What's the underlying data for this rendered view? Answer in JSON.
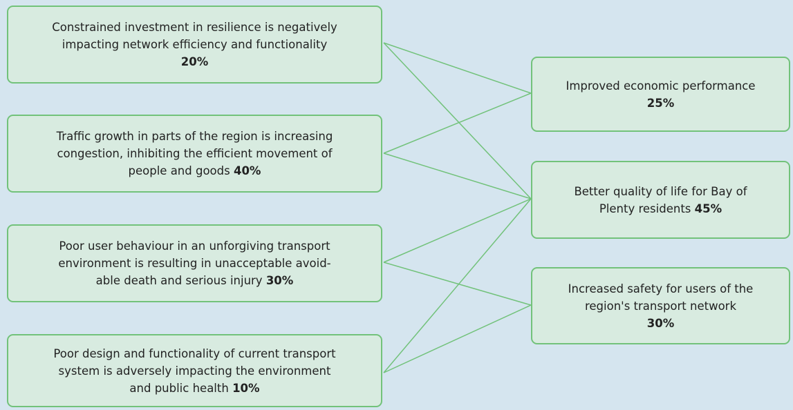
{
  "problems": [
    {
      "lines": [
        "Constrained investment in resilience is negatively",
        "impacting network efficiency and functionality"
      ],
      "weight": "20%",
      "weight_inline": false
    },
    {
      "lines": [
        "Traffic growth in parts of the region is increasing",
        "congestion, inhibiting the efficient movement of",
        "people and goods"
      ],
      "weight": "40%",
      "weight_inline": true
    },
    {
      "lines": [
        "Poor user behaviour in an unforgiving transport",
        "environment is resulting in unacceptable avoid-",
        "able death and serious injury"
      ],
      "weight": "30%",
      "weight_inline": true
    },
    {
      "lines": [
        "Poor design and functionality of current transport",
        "system is adversely impacting the environment",
        "and public health"
      ],
      "weight": "10%",
      "weight_inline": true
    }
  ],
  "benefits": [
    {
      "lines": [
        "Improved economic performance"
      ],
      "weight": "25%",
      "weight_inline": false
    },
    {
      "lines": [
        "Better quality of life for Bay of",
        "Plenty residents"
      ],
      "weight": "45%",
      "weight_inline": true
    },
    {
      "lines": [
        "Increased safety for users of the",
        "region's transport network"
      ],
      "weight": "30%",
      "weight_inline": false
    }
  ]
}
